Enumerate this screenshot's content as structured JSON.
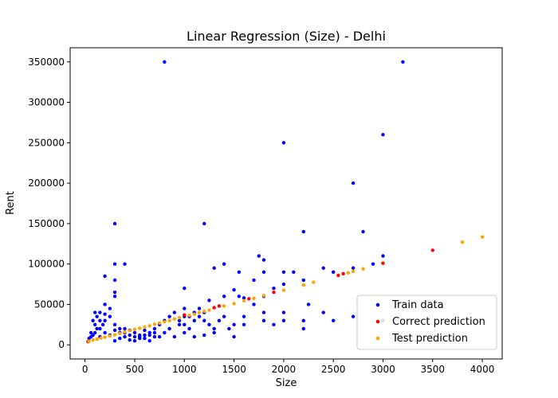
{
  "chart_data": {
    "type": "scatter",
    "title": "Linear Regression (Size) - Delhi",
    "xlabel": "Size",
    "ylabel": "Rent",
    "xlim": [
      -150,
      4200
    ],
    "ylim": [
      -17500,
      367500
    ],
    "xticks": [
      0,
      500,
      1000,
      1500,
      2000,
      2500,
      3000,
      3500,
      4000
    ],
    "yticks": [
      0,
      50000,
      100000,
      150000,
      200000,
      250000,
      300000,
      350000
    ],
    "grid": false,
    "legend": "bottom-right",
    "series": [
      {
        "name": "Train data",
        "color": "#0000ff",
        "points": [
          [
            800,
            350000
          ],
          [
            3200,
            350000
          ],
          [
            3000,
            260000
          ],
          [
            2000,
            250000
          ],
          [
            2700,
            200000
          ],
          [
            300,
            150000
          ],
          [
            1200,
            150000
          ],
          [
            2200,
            140000
          ],
          [
            2800,
            140000
          ],
          [
            3000,
            110000
          ],
          [
            300,
            100000
          ],
          [
            400,
            100000
          ],
          [
            1400,
            100000
          ],
          [
            1750,
            110000
          ],
          [
            1800,
            105000
          ],
          [
            2900,
            100000
          ],
          [
            1300,
            95000
          ],
          [
            2400,
            95000
          ],
          [
            2700,
            95000
          ],
          [
            200,
            85000
          ],
          [
            300,
            80000
          ],
          [
            1550,
            90000
          ],
          [
            1800,
            90000
          ],
          [
            2000,
            90000
          ],
          [
            2100,
            90000
          ],
          [
            2200,
            80000
          ],
          [
            2500,
            90000
          ],
          [
            1700,
            80000
          ],
          [
            1900,
            70000
          ],
          [
            1000,
            70000
          ],
          [
            1500,
            68000
          ],
          [
            300,
            60000
          ],
          [
            300,
            65000
          ],
          [
            1400,
            60000
          ],
          [
            1550,
            60000
          ],
          [
            1800,
            60000
          ],
          [
            1250,
            55000
          ],
          [
            1600,
            58000
          ],
          [
            2000,
            75000
          ],
          [
            2250,
            50000
          ],
          [
            200,
            50000
          ],
          [
            250,
            45000
          ],
          [
            150,
            40000
          ],
          [
            200,
            38000
          ],
          [
            100,
            40000
          ],
          [
            120,
            35000
          ],
          [
            150,
            30000
          ],
          [
            80,
            30000
          ],
          [
            100,
            25000
          ],
          [
            120,
            20000
          ],
          [
            60,
            15000
          ],
          [
            80,
            12000
          ],
          [
            60,
            10000
          ],
          [
            40,
            8000
          ],
          [
            100,
            15000
          ],
          [
            150,
            20000
          ],
          [
            180,
            25000
          ],
          [
            200,
            30000
          ],
          [
            250,
            35000
          ],
          [
            300,
            25000
          ],
          [
            350,
            20000
          ],
          [
            400,
            15000
          ],
          [
            450,
            12000
          ],
          [
            500,
            10000
          ],
          [
            550,
            8000
          ],
          [
            600,
            12000
          ],
          [
            650,
            15000
          ],
          [
            700,
            20000
          ],
          [
            750,
            25000
          ],
          [
            800,
            30000
          ],
          [
            850,
            35000
          ],
          [
            900,
            40000
          ],
          [
            950,
            30000
          ],
          [
            1000,
            25000
          ],
          [
            1050,
            20000
          ],
          [
            1100,
            30000
          ],
          [
            1150,
            45000
          ],
          [
            1200,
            30000
          ],
          [
            1250,
            25000
          ],
          [
            1300,
            20000
          ],
          [
            1350,
            30000
          ],
          [
            1400,
            35000
          ],
          [
            1450,
            20000
          ],
          [
            1500,
            10000
          ],
          [
            1600,
            35000
          ],
          [
            1700,
            50000
          ],
          [
            1800,
            30000
          ],
          [
            1800,
            40000
          ],
          [
            2000,
            30000
          ],
          [
            2000,
            40000
          ],
          [
            2200,
            20000
          ],
          [
            2400,
            40000
          ],
          [
            2500,
            30000
          ],
          [
            2700,
            35000
          ],
          [
            3000,
            30000
          ],
          [
            300,
            5000
          ],
          [
            350,
            8000
          ],
          [
            400,
            10000
          ],
          [
            450,
            6000
          ],
          [
            500,
            5000
          ],
          [
            550,
            10000
          ],
          [
            600,
            8000
          ],
          [
            650,
            5000
          ],
          [
            700,
            10000
          ],
          [
            900,
            10000
          ],
          [
            1000,
            15000
          ],
          [
            1100,
            10000
          ],
          [
            1200,
            12000
          ],
          [
            1300,
            15000
          ],
          [
            1500,
            25000
          ],
          [
            1600,
            25000
          ],
          [
            1900,
            25000
          ],
          [
            2200,
            30000
          ],
          [
            150,
            10000
          ],
          [
            200,
            15000
          ],
          [
            250,
            12000
          ],
          [
            300,
            18000
          ],
          [
            350,
            15000
          ],
          [
            400,
            20000
          ],
          [
            450,
            18000
          ],
          [
            500,
            15000
          ],
          [
            550,
            12000
          ],
          [
            600,
            18000
          ],
          [
            650,
            12000
          ],
          [
            700,
            15000
          ],
          [
            750,
            10000
          ],
          [
            800,
            15000
          ],
          [
            850,
            20000
          ],
          [
            950,
            25000
          ],
          [
            1050,
            35000
          ],
          [
            1100,
            40000
          ],
          [
            1150,
            35000
          ],
          [
            1200,
            40000
          ],
          [
            1000,
            45000
          ],
          [
            1000,
            35000
          ]
        ]
      },
      {
        "name": "Correct prediction",
        "color": "#ff0000",
        "points": [
          [
            30,
            4000
          ],
          [
            1000,
            37000
          ],
          [
            1300,
            46000
          ],
          [
            1350,
            48000
          ],
          [
            1650,
            57000
          ],
          [
            1900,
            65000
          ],
          [
            2550,
            86000
          ],
          [
            2600,
            88000
          ],
          [
            3000,
            101000
          ],
          [
            3500,
            117000
          ]
        ]
      },
      {
        "name": "Test prediction",
        "color": "#ffa500",
        "points": [
          [
            40,
            4500
          ],
          [
            80,
            6000
          ],
          [
            120,
            7000
          ],
          [
            160,
            8500
          ],
          [
            200,
            9500
          ],
          [
            250,
            11000
          ],
          [
            300,
            12500
          ],
          [
            350,
            14000
          ],
          [
            400,
            16000
          ],
          [
            450,
            17500
          ],
          [
            500,
            19000
          ],
          [
            550,
            20500
          ],
          [
            600,
            22000
          ],
          [
            650,
            23500
          ],
          [
            700,
            25500
          ],
          [
            750,
            27000
          ],
          [
            800,
            28500
          ],
          [
            850,
            30000
          ],
          [
            900,
            32000
          ],
          [
            950,
            33500
          ],
          [
            1050,
            36500
          ],
          [
            1100,
            38000
          ],
          [
            1150,
            40000
          ],
          [
            1200,
            41500
          ],
          [
            1250,
            43000
          ],
          [
            1400,
            48000
          ],
          [
            1500,
            51000
          ],
          [
            1600,
            54500
          ],
          [
            1700,
            57500
          ],
          [
            1800,
            61000
          ],
          [
            2000,
            67500
          ],
          [
            2200,
            74000
          ],
          [
            2300,
            77500
          ],
          [
            2650,
            89000
          ],
          [
            2700,
            91000
          ],
          [
            2800,
            94000
          ],
          [
            3800,
            127000
          ],
          [
            4000,
            133500
          ]
        ]
      }
    ]
  }
}
